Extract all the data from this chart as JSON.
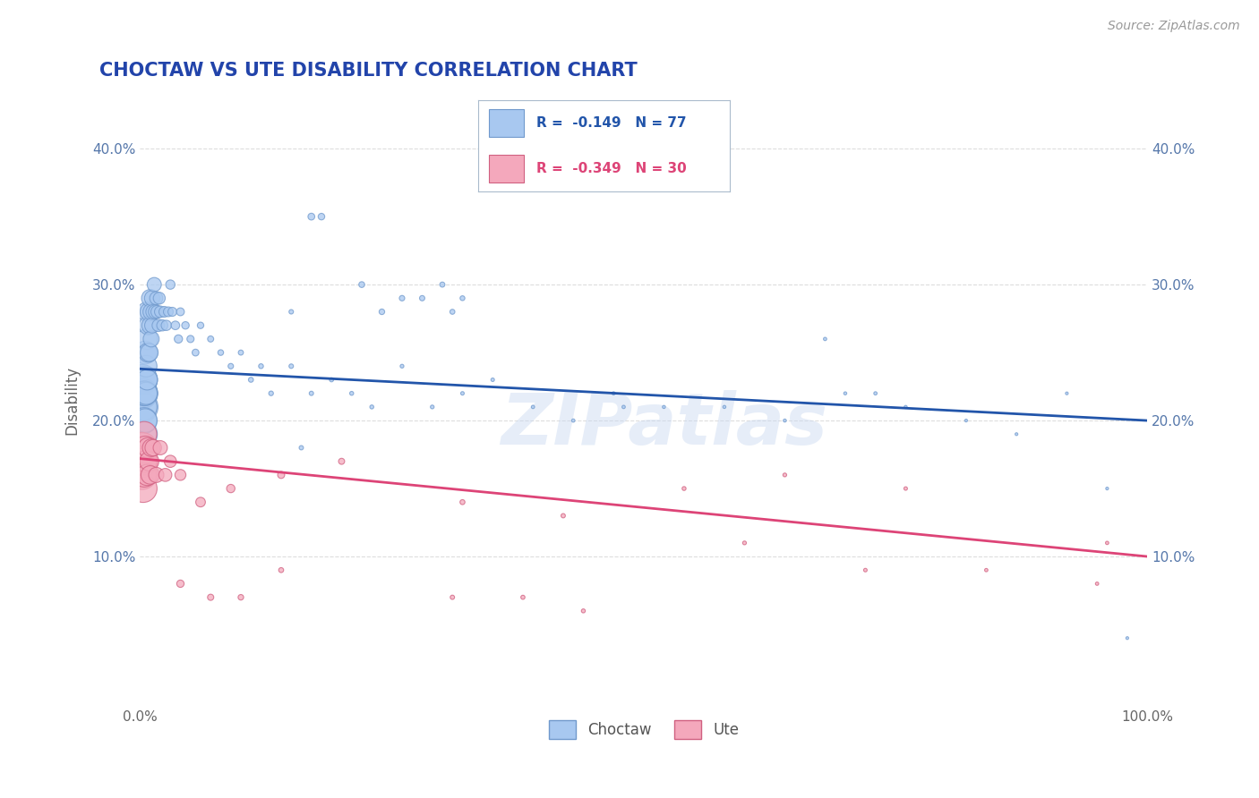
{
  "title": "CHOCTAW VS UTE DISABILITY CORRELATION CHART",
  "source": "Source: ZipAtlas.com",
  "ylabel": "Disability",
  "xlim": [
    0,
    1.0
  ],
  "ylim": [
    -0.01,
    0.44
  ],
  "yticks": [
    0.1,
    0.2,
    0.3,
    0.4
  ],
  "ytick_labels": [
    "10.0%",
    "20.0%",
    "30.0%",
    "40.0%"
  ],
  "choctaw_color": "#A8C8F0",
  "ute_color": "#F4A8BC",
  "choctaw_edge_color": "#7099CC",
  "ute_edge_color": "#D06080",
  "choctaw_line_color": "#2255AA",
  "ute_line_color": "#DD4477",
  "choctaw_R": -0.149,
  "choctaw_N": 77,
  "ute_R": -0.349,
  "ute_N": 30,
  "background_color": "#FFFFFF",
  "grid_color": "#DDDDDD",
  "title_color": "#2244AA",
  "axis_color": "#5577AA",
  "watermark": "ZIPatlas",
  "choctaw_line_y0": 0.238,
  "choctaw_line_y1": 0.2,
  "ute_line_y0": 0.172,
  "ute_line_y1": 0.1,
  "choctaw_x": [
    0.001,
    0.002,
    0.002,
    0.003,
    0.003,
    0.003,
    0.004,
    0.004,
    0.004,
    0.005,
    0.005,
    0.005,
    0.006,
    0.006,
    0.007,
    0.007,
    0.007,
    0.008,
    0.008,
    0.009,
    0.009,
    0.01,
    0.01,
    0.011,
    0.011,
    0.012,
    0.012,
    0.013,
    0.014,
    0.015,
    0.016,
    0.017,
    0.018,
    0.019,
    0.02,
    0.022,
    0.024,
    0.026,
    0.028,
    0.03,
    0.032,
    0.035,
    0.038,
    0.04,
    0.045,
    0.05,
    0.055,
    0.06,
    0.07,
    0.08,
    0.09,
    0.1,
    0.11,
    0.12,
    0.13,
    0.15,
    0.17,
    0.19,
    0.21,
    0.23,
    0.26,
    0.29,
    0.32,
    0.35,
    0.39,
    0.43,
    0.47,
    0.52,
    0.58,
    0.64,
    0.7,
    0.76,
    0.82,
    0.87,
    0.92,
    0.96,
    0.98
  ],
  "choctaw_y": [
    0.22,
    0.21,
    0.23,
    0.22,
    0.19,
    0.21,
    0.23,
    0.2,
    0.22,
    0.22,
    0.2,
    0.25,
    0.22,
    0.24,
    0.26,
    0.23,
    0.28,
    0.25,
    0.27,
    0.28,
    0.25,
    0.29,
    0.27,
    0.28,
    0.26,
    0.29,
    0.27,
    0.28,
    0.3,
    0.28,
    0.29,
    0.28,
    0.27,
    0.29,
    0.28,
    0.27,
    0.28,
    0.27,
    0.28,
    0.3,
    0.28,
    0.27,
    0.26,
    0.28,
    0.27,
    0.26,
    0.25,
    0.27,
    0.26,
    0.25,
    0.24,
    0.25,
    0.23,
    0.24,
    0.22,
    0.24,
    0.22,
    0.23,
    0.22,
    0.21,
    0.24,
    0.21,
    0.22,
    0.23,
    0.21,
    0.2,
    0.22,
    0.21,
    0.21,
    0.2,
    0.22,
    0.21,
    0.2,
    0.19,
    0.22,
    0.15,
    0.04
  ],
  "choctaw_size": [
    700,
    650,
    600,
    550,
    520,
    490,
    460,
    430,
    400,
    380,
    360,
    340,
    320,
    300,
    285,
    270,
    255,
    240,
    225,
    215,
    205,
    195,
    185,
    175,
    165,
    155,
    148,
    140,
    130,
    120,
    112,
    105,
    98,
    92,
    86,
    80,
    74,
    68,
    62,
    56,
    52,
    48,
    44,
    40,
    36,
    33,
    30,
    27,
    24,
    21,
    19,
    17,
    16,
    15,
    14,
    13,
    12,
    11,
    10,
    10,
    9,
    9,
    8,
    8,
    7,
    7,
    7,
    6,
    6,
    6,
    6,
    6,
    5,
    5,
    5,
    5,
    5
  ],
  "ute_x": [
    0.001,
    0.002,
    0.002,
    0.003,
    0.003,
    0.004,
    0.004,
    0.005,
    0.006,
    0.007,
    0.008,
    0.009,
    0.01,
    0.011,
    0.013,
    0.016,
    0.02,
    0.025,
    0.03,
    0.04,
    0.06,
    0.09,
    0.14,
    0.2,
    0.32,
    0.42,
    0.54,
    0.64,
    0.76,
    0.95
  ],
  "ute_y": [
    0.17,
    0.18,
    0.16,
    0.15,
    0.17,
    0.19,
    0.16,
    0.18,
    0.17,
    0.16,
    0.18,
    0.17,
    0.16,
    0.18,
    0.18,
    0.16,
    0.18,
    0.16,
    0.17,
    0.16,
    0.14,
    0.15,
    0.16,
    0.17,
    0.14,
    0.13,
    0.15,
    0.16,
    0.15,
    0.08
  ],
  "ute_size": [
    700,
    600,
    550,
    500,
    450,
    410,
    380,
    350,
    320,
    290,
    265,
    240,
    220,
    200,
    175,
    150,
    130,
    110,
    95,
    78,
    60,
    45,
    32,
    24,
    16,
    12,
    10,
    9,
    8,
    7
  ]
}
